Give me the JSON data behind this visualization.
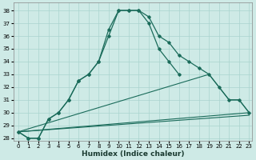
{
  "xlabel": "Humidex (Indice chaleur)",
  "bg_color": "#ceeae6",
  "grid_color": "#aad4ce",
  "line_color": "#1a6b5a",
  "xmin": -0.5,
  "xmax": 23.3,
  "ymin": 27.8,
  "ymax": 38.6,
  "line1_x": [
    0,
    1,
    2,
    3,
    4,
    5,
    6,
    7,
    8,
    9,
    10,
    11,
    12,
    13,
    14,
    15,
    16
  ],
  "line1_y": [
    28.5,
    28.0,
    28.0,
    29.5,
    30.0,
    31.0,
    32.5,
    33.0,
    34.0,
    36.0,
    38.0,
    38.0,
    38.0,
    37.0,
    35.0,
    34.0,
    33.0
  ],
  "line2_x": [
    0,
    1,
    2,
    3,
    4,
    5,
    6,
    7,
    8,
    9,
    10,
    11,
    12,
    13,
    14,
    15,
    16,
    17,
    18,
    19,
    20,
    21,
    22,
    23
  ],
  "line2_y": [
    28.5,
    28.0,
    28.0,
    29.5,
    30.0,
    31.0,
    32.5,
    33.0,
    34.0,
    36.5,
    38.0,
    38.0,
    38.0,
    37.5,
    36.0,
    35.5,
    34.5,
    34.0,
    33.5,
    33.0,
    32.0,
    31.0,
    31.0,
    30.0
  ],
  "line3_x": [
    0,
    23
  ],
  "line3_y": [
    28.5,
    30.0
  ],
  "line4_x": [
    0,
    19,
    20,
    21,
    22,
    23
  ],
  "line4_y": [
    28.5,
    33.0,
    32.0,
    31.0,
    31.0,
    30.0
  ],
  "line5_x": [
    0,
    23
  ],
  "line5_y": [
    28.5,
    29.8
  ],
  "yticks": [
    28,
    29,
    30,
    31,
    32,
    33,
    34,
    35,
    36,
    37,
    38
  ],
  "xticks": [
    0,
    1,
    2,
    3,
    4,
    5,
    6,
    7,
    8,
    9,
    10,
    11,
    12,
    13,
    14,
    15,
    16,
    17,
    18,
    19,
    20,
    21,
    22,
    23
  ],
  "xlabel_fontsize": 6.5,
  "tick_fontsize": 5.0
}
